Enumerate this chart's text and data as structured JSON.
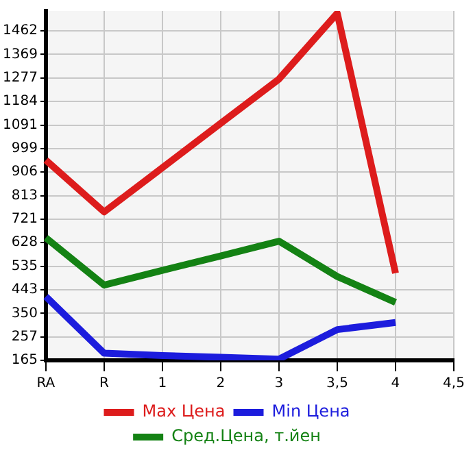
{
  "chart_data": {
    "type": "line",
    "categories": [
      "RA",
      "R",
      "1",
      "2",
      "3",
      "3,5",
      "4",
      "4,5"
    ],
    "series": [
      {
        "name": "Max Цена",
        "color": "#dd1c1c",
        "values": [
          953,
          749,
          923,
          1098,
          1272,
          1531,
          508,
          null
        ]
      },
      {
        "name": "Min Цена",
        "color": "#1c1cdd",
        "values": [
          416,
          193,
          184,
          177,
          170,
          286,
          314,
          null
        ]
      },
      {
        "name": "Сред.Цена, т.йен",
        "color": "#148214",
        "values": [
          647,
          461,
          519,
          576,
          634,
          495,
          393,
          null
        ]
      }
    ],
    "ylim": [
      165,
      1540
    ],
    "yticks": [
      165,
      257,
      350,
      443,
      535,
      628,
      721,
      813,
      906,
      999,
      1091,
      1184,
      1277,
      1369,
      1462
    ],
    "grid": true,
    "legend": "bottom",
    "marker": "none",
    "line_style": "solid"
  }
}
